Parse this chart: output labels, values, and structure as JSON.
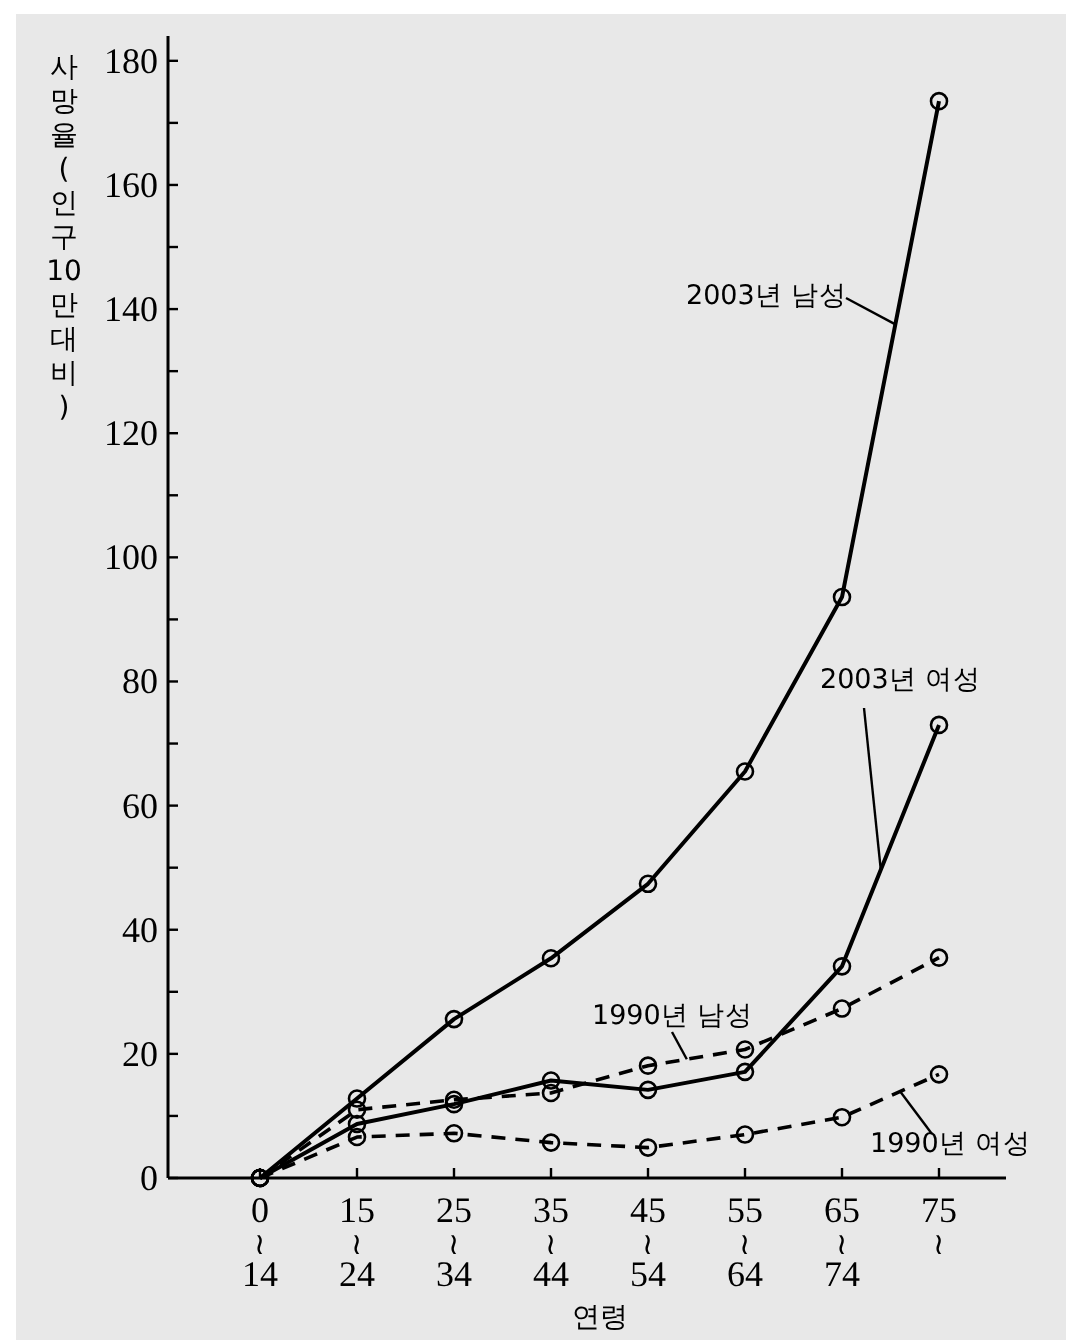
{
  "chart_data": {
    "type": "line",
    "xlabel": "연령",
    "ylabel": "사망율(인구10만대비)",
    "categories": [
      "0≀14",
      "15≀24",
      "25≀34",
      "35≀44",
      "45≀54",
      "55≀64",
      "65≀74",
      "75≀"
    ],
    "series": [
      {
        "name": "2003년 남성",
        "color": "#000000",
        "line_style": "solid",
        "values": [
          0,
          12.8,
          25.6,
          35.4,
          47.4,
          65.5,
          93.6,
          173.5
        ]
      },
      {
        "name": "2003년 여성",
        "color": "#000000",
        "line_style": "solid",
        "values": [
          0,
          8.7,
          11.9,
          15.7,
          14.2,
          17.1,
          34.1,
          73
        ]
      },
      {
        "name": "1990년 남성",
        "color": "#000000",
        "line_style": "dashed",
        "values": [
          0,
          11,
          12.6,
          13.7,
          18.1,
          20.7,
          27.3,
          35.5
        ]
      },
      {
        "name": "1990년 여성",
        "color": "#000000",
        "line_style": "dashed",
        "values": [
          0,
          6.6,
          7.2,
          5.7,
          4.9,
          7,
          9.8,
          16.7
        ]
      }
    ],
    "ylim": [
      0,
      184
    ],
    "yticks": [
      0,
      {
        "value": 10,
        "label": null
      },
      20,
      {
        "value": 30,
        "label": null
      },
      40,
      {
        "value": 50,
        "label": null
      },
      60,
      {
        "value": 70,
        "label": null
      },
      80,
      {
        "value": 90,
        "label": null
      },
      100,
      {
        "value": 110,
        "label": null
      },
      120,
      {
        "value": 130,
        "label": null
      },
      140,
      {
        "value": 150,
        "label": null
      },
      160,
      {
        "value": 170,
        "label": null
      },
      180
    ],
    "marker": "circle",
    "grid": false
  }
}
